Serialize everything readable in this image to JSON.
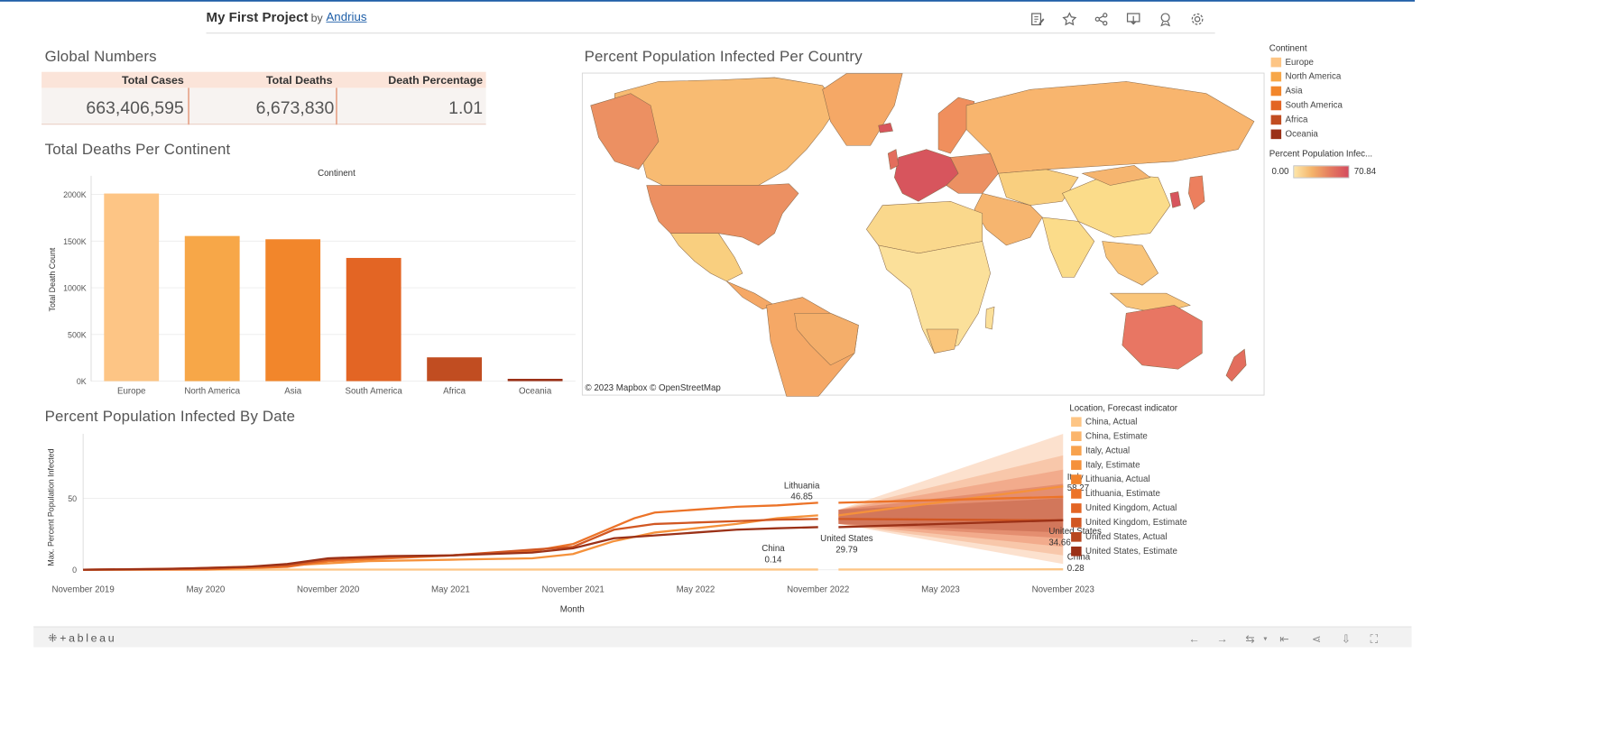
{
  "header": {
    "title": "My First Project",
    "by": "by",
    "author": "Andrius",
    "toolbar_icons": [
      "edit-icon",
      "star-icon",
      "share-icon",
      "download-icon",
      "metrics-icon",
      "settings-icon"
    ]
  },
  "kpi": {
    "title": "Global Numbers",
    "columns": [
      "Total Cases",
      "Total Deaths",
      "Death Percentage"
    ],
    "values": [
      "663,406,595",
      "6,673,830",
      "1.01"
    ]
  },
  "bar_chart": {
    "title": "Total Deaths Per Continent",
    "header": "Continent"
  },
  "map": {
    "title": "Percent Population Infected Per Country",
    "attribution": "© 2023 Mapbox  © OpenStreetMap"
  },
  "continent_legend": {
    "title": "Continent",
    "items": [
      {
        "label": "Europe",
        "color": "#fdc585"
      },
      {
        "label": "North America",
        "color": "#f7a748"
      },
      {
        "label": "Asia",
        "color": "#f2862b"
      },
      {
        "label": "South America",
        "color": "#e36524"
      },
      {
        "label": "Africa",
        "color": "#c14d21"
      },
      {
        "label": "Oceania",
        "color": "#9b3117"
      }
    ]
  },
  "percent_legend": {
    "title": "Percent Population Infec...",
    "min": "0.00",
    "max": "70.84"
  },
  "line_legend": {
    "title": "Location, Forecast indicator",
    "items": [
      {
        "label": "China, Actual",
        "color": "#fdc585"
      },
      {
        "label": "China, Estimate",
        "color": "#fbb56c"
      },
      {
        "label": "Italy, Actual",
        "color": "#f8a24d"
      },
      {
        "label": "Italy, Estimate",
        "color": "#f5913b"
      },
      {
        "label": "Lithuania, Actual",
        "color": "#f2842d"
      },
      {
        "label": "Lithuania, Estimate",
        "color": "#ec7328"
      },
      {
        "label": "United Kingdom, Actual",
        "color": "#e36524"
      },
      {
        "label": "United Kingdom, Estimate",
        "color": "#d15722"
      },
      {
        "label": "United States, Actual",
        "color": "#b8471f"
      },
      {
        "label": "United States, Estimate",
        "color": "#9b3117"
      }
    ]
  },
  "chart_data": [
    {
      "type": "bar",
      "title": "Total Deaths Per Continent",
      "xlabel": "Continent",
      "ylabel": "Total Death Count",
      "categories": [
        "Europe",
        "North America",
        "Asia",
        "South America",
        "Africa",
        "Oceania"
      ],
      "values": [
        2010000,
        1555000,
        1520000,
        1320000,
        255000,
        25000
      ],
      "colors": [
        "#fdc585",
        "#f7a748",
        "#f2862b",
        "#e36524",
        "#c14d21",
        "#9b3117"
      ],
      "ylim": [
        0,
        2200000
      ],
      "yticks": [
        0,
        500000,
        1000000,
        1500000,
        2000000
      ],
      "ytick_labels": [
        "0K",
        "500K",
        "1000K",
        "1500K",
        "2000K"
      ],
      "grid": true
    },
    {
      "type": "line",
      "title": "Percent Population Infected  By Date",
      "xlabel": "Month",
      "ylabel": "Max. Percent Population Infected",
      "x_ticks": [
        "November 2019",
        "May 2020",
        "November 2020",
        "May 2021",
        "November 2021",
        "May 2022",
        "November 2022",
        "May 2023",
        "November 2023"
      ],
      "ylim": [
        0,
        95
      ],
      "yticks": [
        0,
        50
      ],
      "series": [
        {
          "name": "China",
          "color": "#fdc585",
          "actual": [
            [
              0,
              0
            ],
            [
              6,
              0.05
            ],
            [
              12,
              0.1
            ],
            [
              18,
              0.1
            ],
            [
              24,
              0.12
            ],
            [
              30,
              0.13
            ],
            [
              36,
              0.14
            ]
          ],
          "estimate": [
            [
              37,
              0.14
            ],
            [
              48,
              0.28
            ]
          ],
          "end_label": "0.28",
          "mid_label": "0.14"
        },
        {
          "name": "Italy",
          "color": "#f5913b",
          "actual": [
            [
              0,
              0
            ],
            [
              4,
              0.3
            ],
            [
              10,
              3
            ],
            [
              14,
              6
            ],
            [
              18,
              7
            ],
            [
              22,
              8
            ],
            [
              24,
              11
            ],
            [
              26,
              20
            ],
            [
              28,
              26
            ],
            [
              30,
              29
            ],
            [
              32,
              32
            ],
            [
              34,
              36
            ],
            [
              36,
              38
            ]
          ],
          "estimate": [
            [
              37,
              38
            ],
            [
              48,
              58.27
            ]
          ],
          "end_label": "58.27"
        },
        {
          "name": "Lithuania",
          "color": "#ec7328",
          "actual": [
            [
              0,
              0
            ],
            [
              6,
              0.2
            ],
            [
              10,
              2
            ],
            [
              12,
              6
            ],
            [
              15,
              8
            ],
            [
              18,
              10
            ],
            [
              22,
              13
            ],
            [
              24,
              18
            ],
            [
              26,
              30
            ],
            [
              27,
              36
            ],
            [
              28,
              40
            ],
            [
              30,
              42
            ],
            [
              32,
              44
            ],
            [
              34,
              45
            ],
            [
              36,
              46.85
            ]
          ],
          "estimate": [
            [
              37,
              46.85
            ],
            [
              48,
              51
            ]
          ],
          "mid_label": "46.85"
        },
        {
          "name": "United Kingdom",
          "color": "#d15722",
          "actual": [
            [
              0,
              0
            ],
            [
              6,
              1
            ],
            [
              10,
              3
            ],
            [
              12,
              7
            ],
            [
              15,
              9
            ],
            [
              18,
              10
            ],
            [
              20,
              12
            ],
            [
              22,
              14
            ],
            [
              24,
              16
            ],
            [
              26,
              28
            ],
            [
              28,
              32
            ],
            [
              30,
              33
            ],
            [
              32,
              34
            ],
            [
              34,
              35
            ],
            [
              36,
              35.5
            ]
          ],
          "estimate": [
            [
              37,
              35.5
            ],
            [
              48,
              34.5
            ]
          ]
        },
        {
          "name": "United States",
          "color": "#9b3117",
          "actual": [
            [
              0,
              0
            ],
            [
              4,
              0.5
            ],
            [
              8,
              2
            ],
            [
              10,
              4
            ],
            [
              12,
              8
            ],
            [
              15,
              9.5
            ],
            [
              18,
              10
            ],
            [
              22,
              12
            ],
            [
              24,
              15
            ],
            [
              26,
              22
            ],
            [
              28,
              24
            ],
            [
              30,
              26
            ],
            [
              32,
              28
            ],
            [
              34,
              29
            ],
            [
              36,
              29.79
            ]
          ],
          "estimate": [
            [
              37,
              29.79
            ],
            [
              48,
              34.66
            ]
          ],
          "end_label": "34.66",
          "mid_label": "29.79"
        }
      ],
      "annotations": [
        {
          "text": "Lithuania",
          "value": "46.85"
        },
        {
          "text": "United States",
          "value": "29.79"
        },
        {
          "text": "China",
          "value": "0.14"
        },
        {
          "text": "Italy",
          "value": "58.27"
        },
        {
          "text": "United States",
          "value": "34.66"
        },
        {
          "text": "China",
          "value": "0.28"
        }
      ]
    }
  ],
  "footer": {
    "logo": "+ableau",
    "icons": [
      "undo-icon",
      "redo-icon",
      "revert-icon",
      "dropdown-icon",
      "back-to-start-icon",
      "share-icon",
      "download-icon",
      "fullscreen-icon"
    ]
  }
}
